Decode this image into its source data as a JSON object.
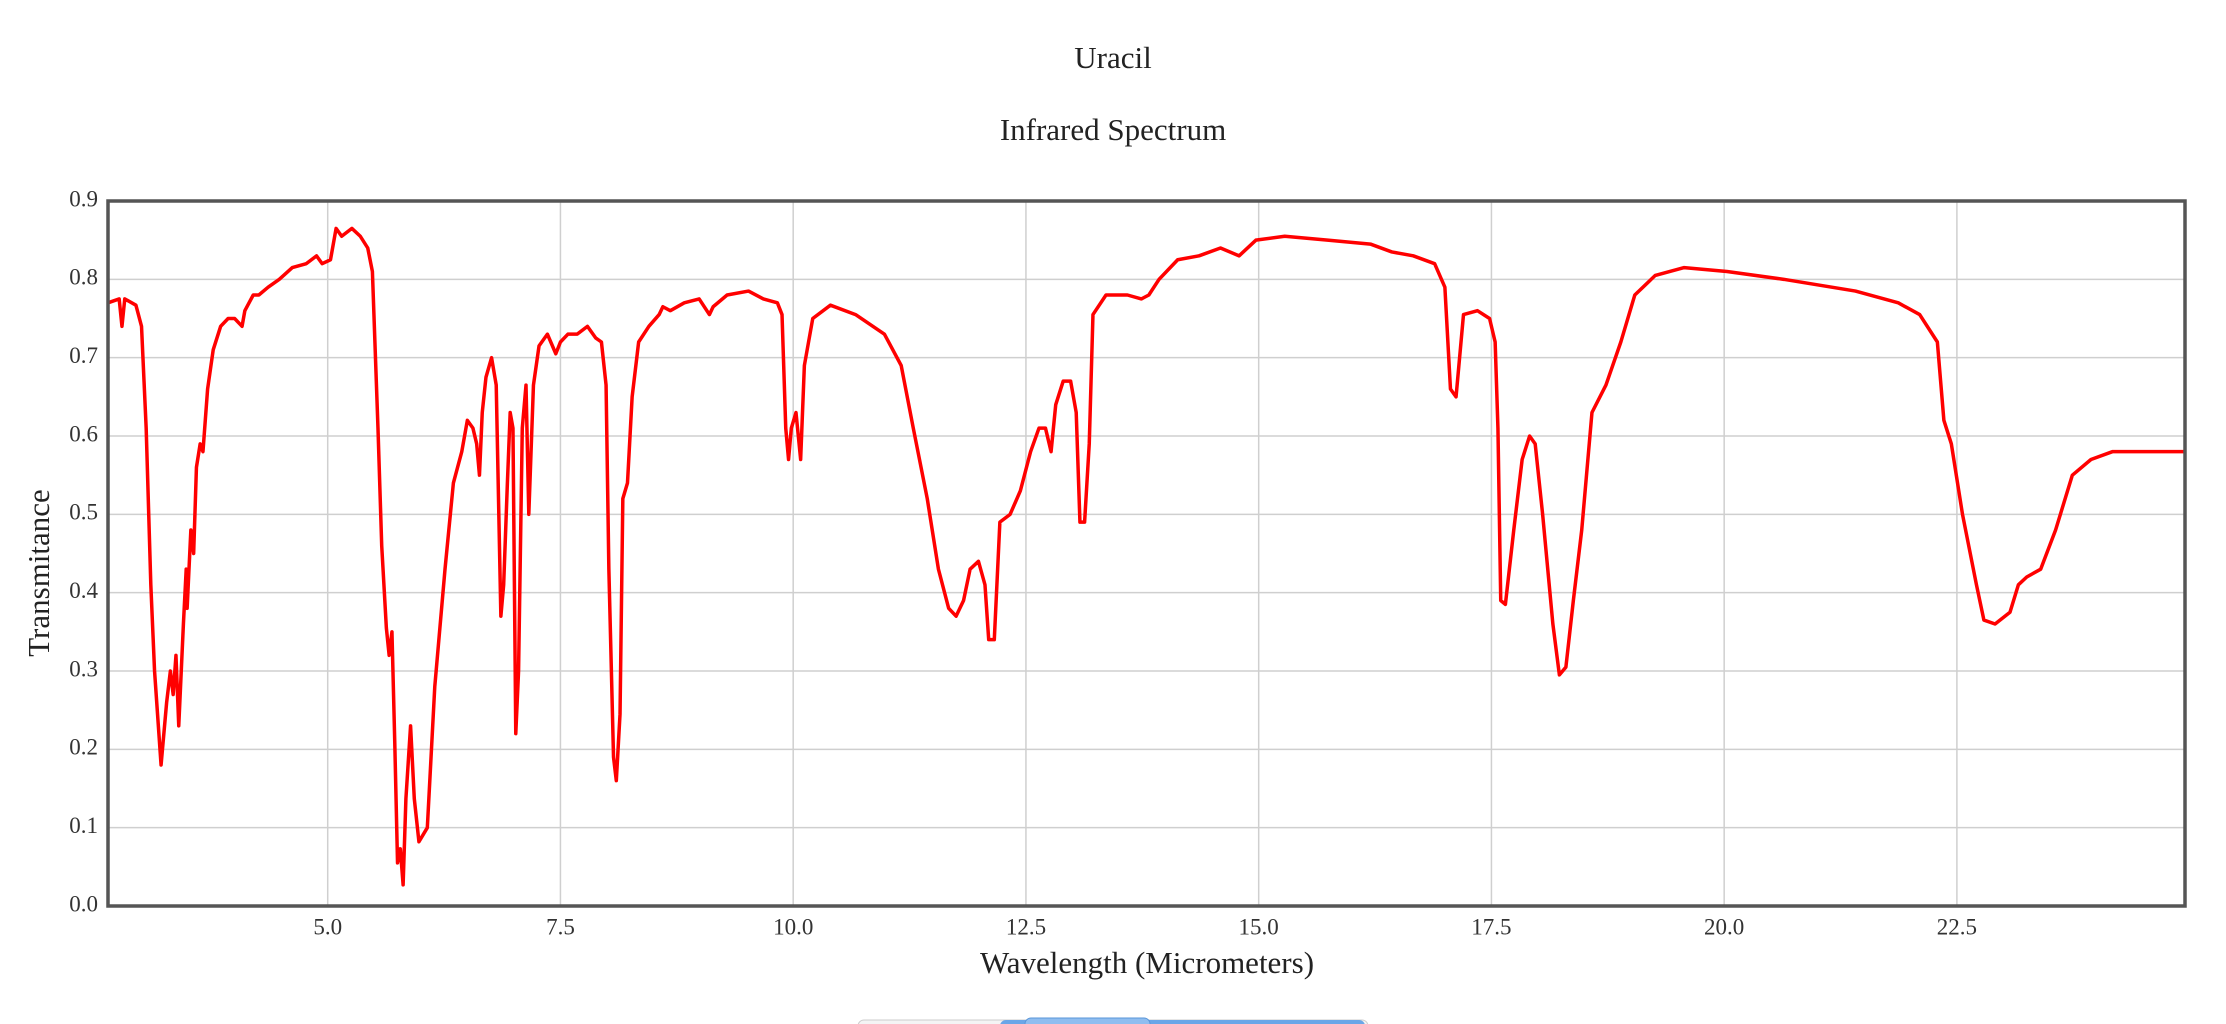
{
  "chart_data": {
    "type": "line",
    "title": "Uracil",
    "subtitle": "Infrared Spectrum",
    "x_label": "Wavelength (Micrometers)",
    "y_label": "Transmitance",
    "color": "#ff0000",
    "grid": true,
    "xlim": [
      2.64,
      24.95
    ],
    "ylim": [
      0,
      0.9
    ],
    "xticks": [
      {
        "value": 5,
        "label": "5.0"
      },
      7.5,
      {
        "value": 10,
        "label": "10.0"
      },
      12.5,
      {
        "value": 15,
        "label": "15.0"
      },
      17.5,
      {
        "value": 20,
        "label": "20.0"
      },
      22.5
    ],
    "yticks": [
      {
        "value": 0,
        "label": "0.0"
      },
      0.1,
      0.2,
      0.3,
      0.4,
      0.5,
      0.6,
      0.7,
      0.8,
      0.9
    ],
    "x": [
      2.64,
      2.76,
      2.79,
      2.82,
      2.94,
      3.0,
      3.05,
      3.1,
      3.14,
      3.21,
      3.27,
      3.31,
      3.34,
      3.37,
      3.4,
      3.45,
      3.48,
      3.49,
      3.53,
      3.56,
      3.59,
      3.63,
      3.66,
      3.71,
      3.77,
      3.85,
      3.93,
      4.0,
      4.08,
      4.11,
      4.2,
      4.26,
      4.36,
      4.48,
      4.62,
      4.77,
      4.88,
      4.94,
      5.03,
      5.09,
      5.15,
      5.26,
      5.35,
      5.43,
      5.48,
      5.54,
      5.58,
      5.63,
      5.66,
      5.69,
      5.72,
      5.75,
      5.78,
      5.81,
      5.84,
      5.89,
      5.93,
      5.98,
      6.07,
      6.15,
      6.26,
      6.35,
      6.44,
      6.5,
      6.56,
      6.6,
      6.63,
      6.66,
      6.7,
      6.76,
      6.81,
      6.86,
      6.89,
      6.93,
      6.96,
      6.99,
      7.02,
      7.05,
      7.09,
      7.13,
      7.16,
      7.21,
      7.27,
      7.36,
      7.45,
      7.5,
      7.58,
      7.68,
      7.79,
      7.88,
      7.94,
      7.99,
      8.02,
      8.07,
      8.1,
      8.14,
      8.17,
      8.22,
      8.27,
      8.34,
      8.45,
      8.56,
      8.6,
      8.68,
      8.83,
      8.99,
      9.1,
      9.14,
      9.29,
      9.52,
      9.68,
      9.83,
      9.88,
      9.92,
      9.95,
      9.98,
      10.03,
      10.08,
      10.12,
      10.21,
      10.4,
      10.67,
      10.98,
      11.16,
      11.29,
      11.44,
      11.56,
      11.67,
      11.75,
      11.83,
      11.9,
      11.99,
      12.06,
      12.1,
      12.16,
      12.22,
      12.33,
      12.44,
      12.55,
      12.64,
      12.71,
      12.77,
      12.82,
      12.9,
      12.98,
      13.04,
      13.08,
      13.13,
      13.18,
      13.22,
      13.36,
      13.59,
      13.74,
      13.82,
      13.93,
      14.13,
      14.36,
      14.59,
      14.79,
      14.97,
      15.28,
      15.74,
      16.2,
      16.43,
      16.66,
      16.89,
      17.0,
      17.06,
      17.12,
      17.2,
      17.35,
      17.48,
      17.54,
      17.57,
      17.6,
      17.65,
      17.74,
      17.83,
      17.91,
      17.97,
      18.05,
      18.16,
      18.23,
      18.3,
      18.38,
      18.47,
      18.58,
      18.73,
      18.89,
      19.04,
      19.26,
      19.57,
      20.03,
      20.64,
      21.41,
      21.87,
      22.1,
      22.29,
      22.36,
      22.44,
      22.56,
      22.71,
      22.79,
      22.91,
      23.07,
      23.16,
      23.25,
      23.4,
      23.56,
      23.74,
      23.94,
      24.17,
      24.48,
      24.95
    ],
    "values": [
      0.77,
      0.775,
      0.74,
      0.775,
      0.767,
      0.74,
      0.61,
      0.41,
      0.3,
      0.18,
      0.26,
      0.3,
      0.27,
      0.32,
      0.23,
      0.36,
      0.43,
      0.38,
      0.48,
      0.45,
      0.56,
      0.59,
      0.58,
      0.66,
      0.71,
      0.74,
      0.75,
      0.75,
      0.74,
      0.76,
      0.78,
      0.78,
      0.79,
      0.8,
      0.815,
      0.82,
      0.83,
      0.82,
      0.825,
      0.865,
      0.855,
      0.865,
      0.855,
      0.84,
      0.81,
      0.61,
      0.46,
      0.355,
      0.32,
      0.35,
      0.21,
      0.055,
      0.073,
      0.027,
      0.137,
      0.23,
      0.137,
      0.082,
      0.1,
      0.28,
      0.43,
      0.54,
      0.58,
      0.62,
      0.61,
      0.59,
      0.55,
      0.63,
      0.675,
      0.7,
      0.665,
      0.37,
      0.41,
      0.54,
      0.63,
      0.61,
      0.22,
      0.3,
      0.61,
      0.665,
      0.5,
      0.665,
      0.715,
      0.73,
      0.705,
      0.72,
      0.73,
      0.73,
      0.74,
      0.725,
      0.72,
      0.665,
      0.43,
      0.19,
      0.16,
      0.245,
      0.52,
      0.54,
      0.65,
      0.72,
      0.74,
      0.755,
      0.765,
      0.76,
      0.77,
      0.775,
      0.755,
      0.765,
      0.78,
      0.785,
      0.775,
      0.77,
      0.755,
      0.61,
      0.57,
      0.61,
      0.63,
      0.57,
      0.69,
      0.75,
      0.767,
      0.755,
      0.73,
      0.69,
      0.61,
      0.52,
      0.43,
      0.38,
      0.37,
      0.39,
      0.43,
      0.44,
      0.41,
      0.34,
      0.34,
      0.49,
      0.5,
      0.53,
      0.58,
      0.61,
      0.61,
      0.58,
      0.64,
      0.67,
      0.67,
      0.63,
      0.49,
      0.49,
      0.59,
      0.755,
      0.78,
      0.78,
      0.775,
      0.78,
      0.8,
      0.825,
      0.83,
      0.84,
      0.83,
      0.85,
      0.855,
      0.85,
      0.845,
      0.835,
      0.83,
      0.82,
      0.79,
      0.66,
      0.65,
      0.755,
      0.76,
      0.75,
      0.72,
      0.61,
      0.39,
      0.385,
      0.48,
      0.57,
      0.6,
      0.59,
      0.5,
      0.36,
      0.295,
      0.305,
      0.39,
      0.48,
      0.63,
      0.665,
      0.72,
      0.78,
      0.805,
      0.815,
      0.81,
      0.8,
      0.785,
      0.77,
      0.755,
      0.72,
      0.62,
      0.59,
      0.5,
      0.41,
      0.365,
      0.36,
      0.375,
      0.41,
      0.42,
      0.43,
      0.48,
      0.55,
      0.57,
      0.58,
      0.58,
      0.58
    ]
  }
}
